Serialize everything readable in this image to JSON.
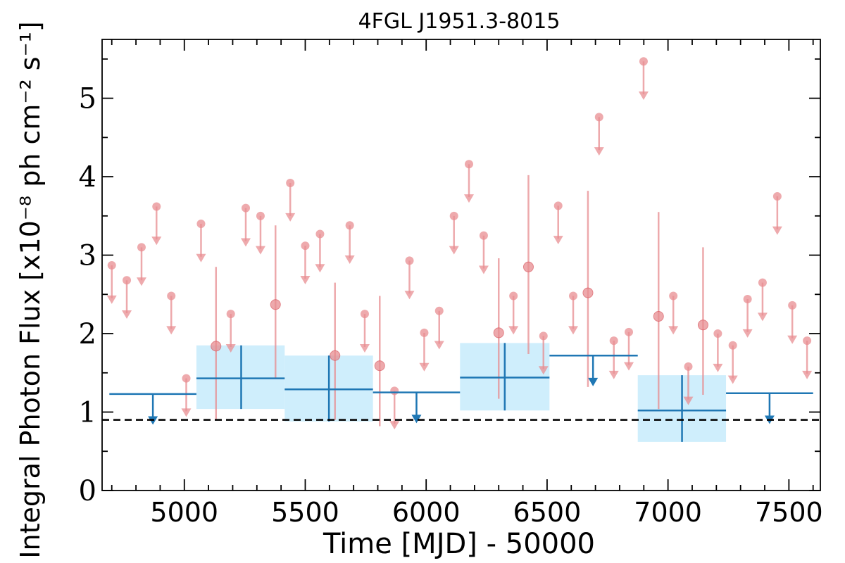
{
  "chart_data": {
    "type": "scatter",
    "title": "4FGL J1951.3-8015",
    "xlabel": "Time [MJD] - 50000",
    "ylabel": "Integral Photon Flux [x10⁻⁸ ph cm⁻² s⁻¹]",
    "xlim": [
      4660,
      7630
    ],
    "ylim": [
      0,
      5.75
    ],
    "x_ticks": [
      5000,
      5500,
      6000,
      6500,
      7000,
      7500
    ],
    "y_ticks": [
      0,
      1,
      2,
      3,
      4,
      5
    ],
    "grid": false,
    "legend": "none",
    "colors": {
      "fine_bins": "#e88d91",
      "coarse_bins": "#1f77b4",
      "coarse_band": "#cfeefc",
      "reference_line": "#000000"
    },
    "reference_line": {
      "y": 0.9,
      "style": "dashed"
    },
    "series": [
      {
        "role": "fine-bin upper limits",
        "points": [
          {
            "x": 4700,
            "y": 2.87
          },
          {
            "x": 4762,
            "y": 2.68
          },
          {
            "x": 4823,
            "y": 3.1
          },
          {
            "x": 4885,
            "y": 3.62
          },
          {
            "x": 4946,
            "y": 2.48
          },
          {
            "x": 5008,
            "y": 1.43
          },
          {
            "x": 5069,
            "y": 3.4
          },
          {
            "x": 5192,
            "y": 2.25
          },
          {
            "x": 5254,
            "y": 3.6
          },
          {
            "x": 5315,
            "y": 3.5
          },
          {
            "x": 5438,
            "y": 3.92
          },
          {
            "x": 5500,
            "y": 3.12
          },
          {
            "x": 5561,
            "y": 3.27
          },
          {
            "x": 5684,
            "y": 3.38
          },
          {
            "x": 5746,
            "y": 2.25
          },
          {
            "x": 5869,
            "y": 1.27
          },
          {
            "x": 5931,
            "y": 2.93
          },
          {
            "x": 5992,
            "y": 2.01
          },
          {
            "x": 6054,
            "y": 2.29
          },
          {
            "x": 6115,
            "y": 3.5
          },
          {
            "x": 6177,
            "y": 4.16
          },
          {
            "x": 6238,
            "y": 3.25
          },
          {
            "x": 6361,
            "y": 2.48
          },
          {
            "x": 6485,
            "y": 1.97
          },
          {
            "x": 6546,
            "y": 3.63
          },
          {
            "x": 6608,
            "y": 2.48
          },
          {
            "x": 6715,
            "y": 4.76
          },
          {
            "x": 6776,
            "y": 1.91
          },
          {
            "x": 6838,
            "y": 2.02
          },
          {
            "x": 6899,
            "y": 5.47
          },
          {
            "x": 7022,
            "y": 2.48
          },
          {
            "x": 7084,
            "y": 1.58
          },
          {
            "x": 7206,
            "y": 2.0
          },
          {
            "x": 7268,
            "y": 1.85
          },
          {
            "x": 7329,
            "y": 2.44
          },
          {
            "x": 7391,
            "y": 2.65
          },
          {
            "x": 7452,
            "y": 3.75
          },
          {
            "x": 7514,
            "y": 2.36
          },
          {
            "x": 7575,
            "y": 1.91
          }
        ]
      },
      {
        "role": "fine-bin detections",
        "points": [
          {
            "x": 5131,
            "y": 1.84,
            "ylo": 0.9,
            "yhi": 2.85
          },
          {
            "x": 5377,
            "y": 2.37,
            "ylo": 1.43,
            "yhi": 3.38
          },
          {
            "x": 5623,
            "y": 1.72,
            "ylo": 0.9,
            "yhi": 2.65
          },
          {
            "x": 5808,
            "y": 1.59,
            "ylo": 0.82,
            "yhi": 2.48
          },
          {
            "x": 6300,
            "y": 2.01,
            "ylo": 1.17,
            "yhi": 2.96
          },
          {
            "x": 6423,
            "y": 2.85,
            "ylo": 1.74,
            "yhi": 4.02
          },
          {
            "x": 6669,
            "y": 2.52,
            "ylo": 1.32,
            "yhi": 3.82
          },
          {
            "x": 6961,
            "y": 2.22,
            "ylo": 1.04,
            "yhi": 3.55
          },
          {
            "x": 7145,
            "y": 2.11,
            "ylo": 1.22,
            "yhi": 3.1
          }
        ]
      },
      {
        "role": "coarse-bin upper limits",
        "bins": [
          {
            "x0": 4690,
            "x1": 5050,
            "y": 1.23,
            "x": 4870
          },
          {
            "x0": 5780,
            "x1": 6140,
            "y": 1.25,
            "x": 5960
          },
          {
            "x0": 6510,
            "x1": 6875,
            "y": 1.72,
            "x": 6690
          },
          {
            "x0": 7240,
            "x1": 7600,
            "y": 1.24,
            "x": 7420
          }
        ]
      },
      {
        "role": "coarse-bin detections",
        "bins": [
          {
            "x0": 5050,
            "x1": 5415,
            "x": 5235,
            "y": 1.43,
            "ylo": 1.04,
            "yhi": 1.85
          },
          {
            "x0": 5415,
            "x1": 5780,
            "x": 5598,
            "y": 1.29,
            "ylo": 0.88,
            "yhi": 1.72
          },
          {
            "x0": 6140,
            "x1": 6510,
            "x": 6325,
            "y": 1.44,
            "ylo": 1.02,
            "yhi": 1.88
          },
          {
            "x0": 6875,
            "x1": 7240,
            "x": 7058,
            "y": 1.02,
            "ylo": 0.62,
            "yhi": 1.47
          }
        ]
      }
    ]
  }
}
